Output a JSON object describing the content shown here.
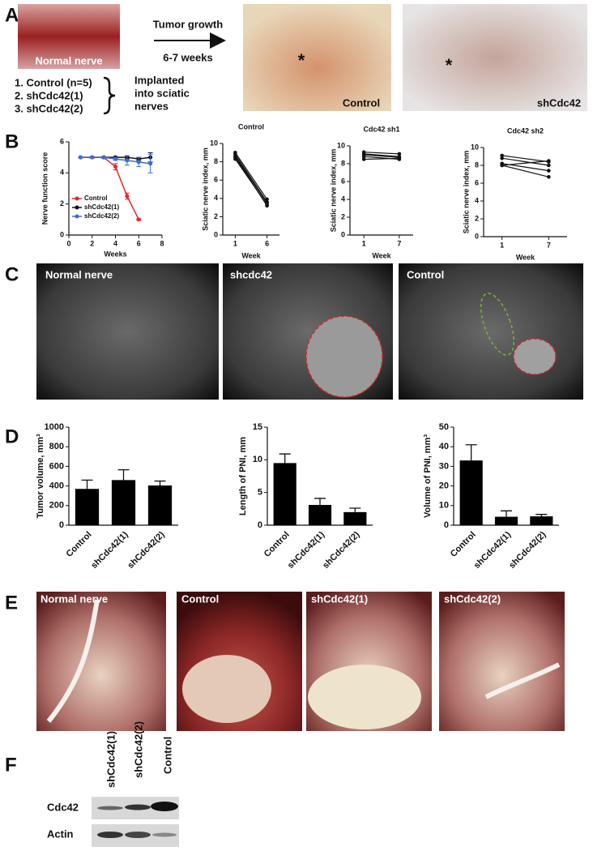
{
  "panels": {
    "A": {
      "label": "A",
      "photo_labels": [
        "Normal nerve",
        "Control",
        "shCdc42"
      ],
      "arrow_top": "Tumor growth",
      "arrow_bottom": "6-7 weeks",
      "groups": [
        "1. Control (n=5)",
        "2. shCdc42(1)",
        "3. shCdc42(2)"
      ],
      "implanted": [
        "Implanted",
        "into sciatic",
        "nerves"
      ],
      "asterisks": [
        "*",
        "*"
      ]
    },
    "B": {
      "label": "B"
    },
    "C": {
      "label": "C",
      "image_labels": [
        "Normal nerve",
        "shcdc42",
        "Control"
      ]
    },
    "D": {
      "label": "D"
    },
    "E": {
      "label": "E",
      "image_labels": [
        "Normal nerve",
        "Control",
        "shCdc42(1)",
        "shCdc42(2)"
      ]
    },
    "F": {
      "label": "F",
      "lanes": [
        "shCdc42(1)",
        "shCdc42(2)",
        "Control"
      ],
      "rows": [
        "Cdc42",
        "Actin"
      ]
    }
  },
  "chart_data": [
    {
      "type": "line",
      "ylabel": "Nerve function score",
      "xlabel": "Weeks",
      "xlim": [
        0,
        8
      ],
      "xticks": [
        0,
        2,
        4,
        6,
        8
      ],
      "ylim": [
        0,
        6
      ],
      "yticks": [
        0,
        2,
        4,
        6
      ],
      "series": [
        {
          "name": "Control",
          "color": "#e8262a",
          "x": [
            1,
            2,
            3,
            4,
            5,
            6
          ],
          "values": [
            5,
            5,
            5,
            4.4,
            2.5,
            1
          ],
          "errors": [
            0,
            0.05,
            0.05,
            0.2,
            0.2,
            0.05
          ]
        },
        {
          "name": "shCdc42(1)",
          "color": "#111111",
          "x": [
            1,
            2,
            3,
            4,
            5,
            6,
            7
          ],
          "values": [
            5,
            5,
            5,
            5,
            5,
            4.9,
            5
          ],
          "errors": [
            0,
            0,
            0,
            0.05,
            0.1,
            0.1,
            0.3
          ]
        },
        {
          "name": "shCdc42(2)",
          "color": "#3b6fd1",
          "x": [
            1,
            2,
            3,
            4,
            5,
            6,
            7
          ],
          "values": [
            5,
            5,
            5,
            4.9,
            4.8,
            4.7,
            4.6
          ],
          "errors": [
            0,
            0,
            0,
            0.1,
            0.3,
            0.3,
            0.6
          ]
        }
      ]
    },
    {
      "type": "paired",
      "title": "Control",
      "ylabel": "Sciatic nerve index, mm",
      "xlabel": "Week",
      "categories": [
        "1",
        "6"
      ],
      "ylim": [
        0,
        10
      ],
      "yticks": [
        0,
        2,
        4,
        6,
        8,
        10
      ],
      "color": "#111111",
      "series": [
        {
          "values": [
            9,
            3.9
          ]
        },
        {
          "values": [
            8.6,
            3.5
          ]
        },
        {
          "values": [
            8.3,
            3.3
          ]
        },
        {
          "values": [
            8.5,
            3.2
          ]
        },
        {
          "values": [
            8.8,
            3.6
          ]
        }
      ]
    },
    {
      "type": "paired",
      "title": "Cdc42 sh1",
      "ylabel": "Sciatic nerve index, mm",
      "xlabel": "Week",
      "categories": [
        "1",
        "7"
      ],
      "ylim": [
        0,
        10
      ],
      "yticks": [
        0,
        2,
        4,
        6,
        8,
        10
      ],
      "color": "#111111",
      "series": [
        {
          "values": [
            9.3,
            9.1
          ]
        },
        {
          "values": [
            9,
            8.7
          ]
        },
        {
          "values": [
            8.8,
            8.5
          ]
        },
        {
          "values": [
            8.5,
            8.6
          ]
        },
        {
          "values": [
            9.1,
            8.8
          ]
        }
      ]
    },
    {
      "type": "paired",
      "title": "Cdc42 sh2",
      "ylabel": "Sciatic nerve index, mm",
      "xlabel": "Week",
      "categories": [
        "1",
        "7"
      ],
      "ylim": [
        0,
        10
      ],
      "yticks": [
        0,
        2,
        4,
        6,
        8,
        10
      ],
      "color": "#111111",
      "series": [
        {
          "values": [
            9.1,
            8.4
          ]
        },
        {
          "values": [
            8.8,
            8
          ]
        },
        {
          "values": [
            8.2,
            7.4
          ]
        },
        {
          "values": [
            8,
            6.7
          ]
        },
        {
          "values": [
            8,
            8.5
          ]
        }
      ]
    },
    {
      "type": "bar",
      "ylabel": "Tumor volume, mm³",
      "categories": [
        "Control",
        "shCdc42(1)",
        "shCdc42(2)"
      ],
      "values": [
        370,
        460,
        405
      ],
      "errors": [
        90,
        105,
        45
      ],
      "color": "#000000",
      "ylim": [
        0,
        1000
      ],
      "yticks": [
        0,
        200,
        400,
        600,
        800,
        1000
      ]
    },
    {
      "type": "bar",
      "ylabel": "Length of PNI, mm",
      "categories": [
        "Control",
        "shCdc42(1)",
        "shCdc42(2)"
      ],
      "values": [
        9.5,
        3.1,
        2
      ],
      "errors": [
        1.4,
        1,
        0.6
      ],
      "color": "#000000",
      "ylim": [
        0,
        15
      ],
      "yticks": [
        0,
        5,
        10,
        15
      ]
    },
    {
      "type": "bar",
      "ylabel": "Volume of PNI, mm³",
      "categories": [
        "Control",
        "shCdc42(1)",
        "shCdc42(2)"
      ],
      "values": [
        33,
        4.3,
        4.5
      ],
      "errors": [
        8,
        3,
        1
      ],
      "color": "#000000",
      "ylim": [
        0,
        50
      ],
      "yticks": [
        0,
        10,
        20,
        30,
        40,
        50
      ]
    }
  ]
}
